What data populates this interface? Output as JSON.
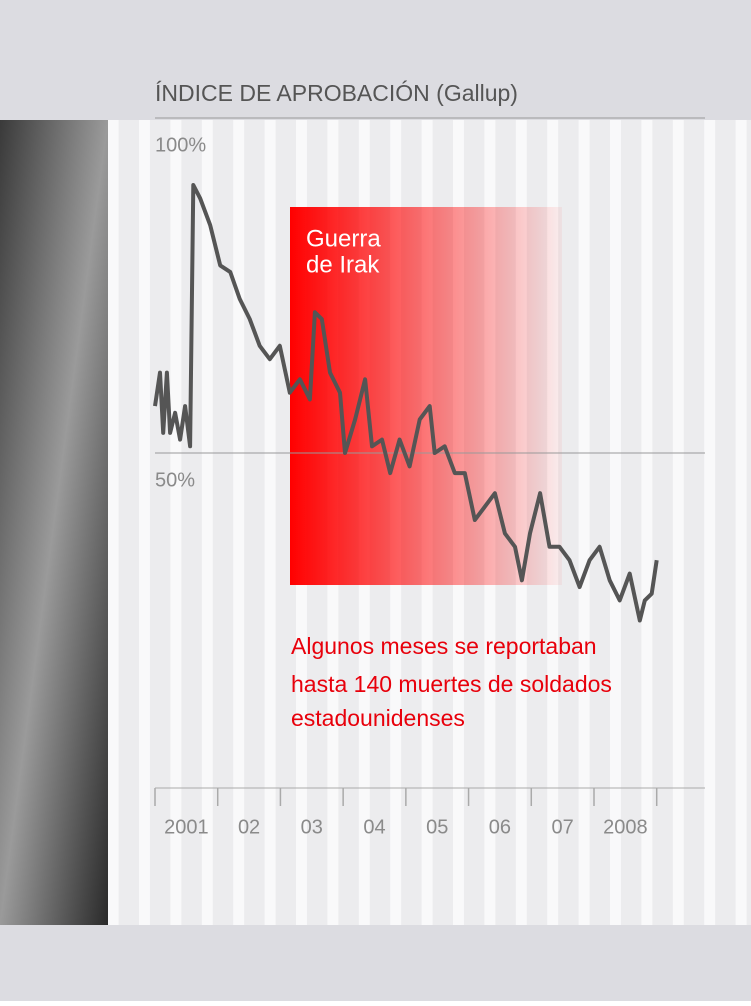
{
  "chart_data": {
    "type": "line",
    "title": "ÍNDICE DE APROBACIÓN (Gallup)",
    "war_label": [
      "Guerra",
      "de Irak"
    ],
    "note": [
      "Algunos meses se reportaban",
      "hasta 140 muertes de soldados",
      "estadounidenses"
    ],
    "xlim": [
      2001,
      2009.77
    ],
    "ylim": [
      0,
      100
    ],
    "yticks": [
      {
        "value": 100,
        "label": "100%"
      },
      {
        "value": 50,
        "label": "50%"
      }
    ],
    "xticks": [
      {
        "value": 2001.5,
        "label": "2001"
      },
      {
        "value": 2002.5,
        "label": "02"
      },
      {
        "value": 2003.5,
        "label": "03"
      },
      {
        "value": 2004.5,
        "label": "04"
      },
      {
        "value": 2005.5,
        "label": "05"
      },
      {
        "value": 2006.5,
        "label": "06"
      },
      {
        "value": 2007.5,
        "label": "07"
      },
      {
        "value": 2008.5,
        "label": "2008"
      }
    ],
    "grid": true,
    "series": [
      {
        "color": "#555555",
        "x": [
          2001.0,
          2001.08,
          2001.13,
          2001.19,
          2001.24,
          2001.32,
          2001.4,
          2001.48,
          2001.56,
          2001.61,
          2001.72,
          2001.88,
          2002.04,
          2002.2,
          2002.35,
          2002.51,
          2002.67,
          2002.83,
          2002.99,
          2003.15,
          2003.31,
          2003.47,
          2003.55,
          2003.66,
          2003.79,
          2003.95,
          2004.03,
          2004.19,
          2004.35,
          2004.46,
          2004.62,
          2004.75,
          2004.9,
          2005.06,
          2005.22,
          2005.38,
          2005.46,
          2005.62,
          2005.78,
          2005.94,
          2006.1,
          2006.26,
          2006.42,
          2006.58,
          2006.74,
          2006.85,
          2006.98,
          2007.14,
          2007.29,
          2007.45,
          2007.61,
          2007.77,
          2007.93,
          2008.09,
          2008.25,
          2008.41,
          2008.57,
          2008.73,
          2008.81,
          2008.92,
          2009.0
        ],
        "values": [
          57,
          62,
          53,
          62,
          53,
          56,
          52,
          57,
          51,
          90,
          88,
          84,
          78,
          77,
          73,
          70,
          66,
          64,
          66,
          59,
          61,
          58,
          71,
          70,
          62,
          59,
          50,
          55,
          61,
          51,
          52,
          47,
          52,
          48,
          55,
          57,
          50,
          51,
          47,
          47,
          40,
          42,
          44,
          38,
          36,
          31,
          38,
          44,
          36,
          36,
          34,
          30,
          34,
          36,
          31,
          28,
          32,
          25,
          28,
          29,
          34
        ]
      }
    ]
  }
}
